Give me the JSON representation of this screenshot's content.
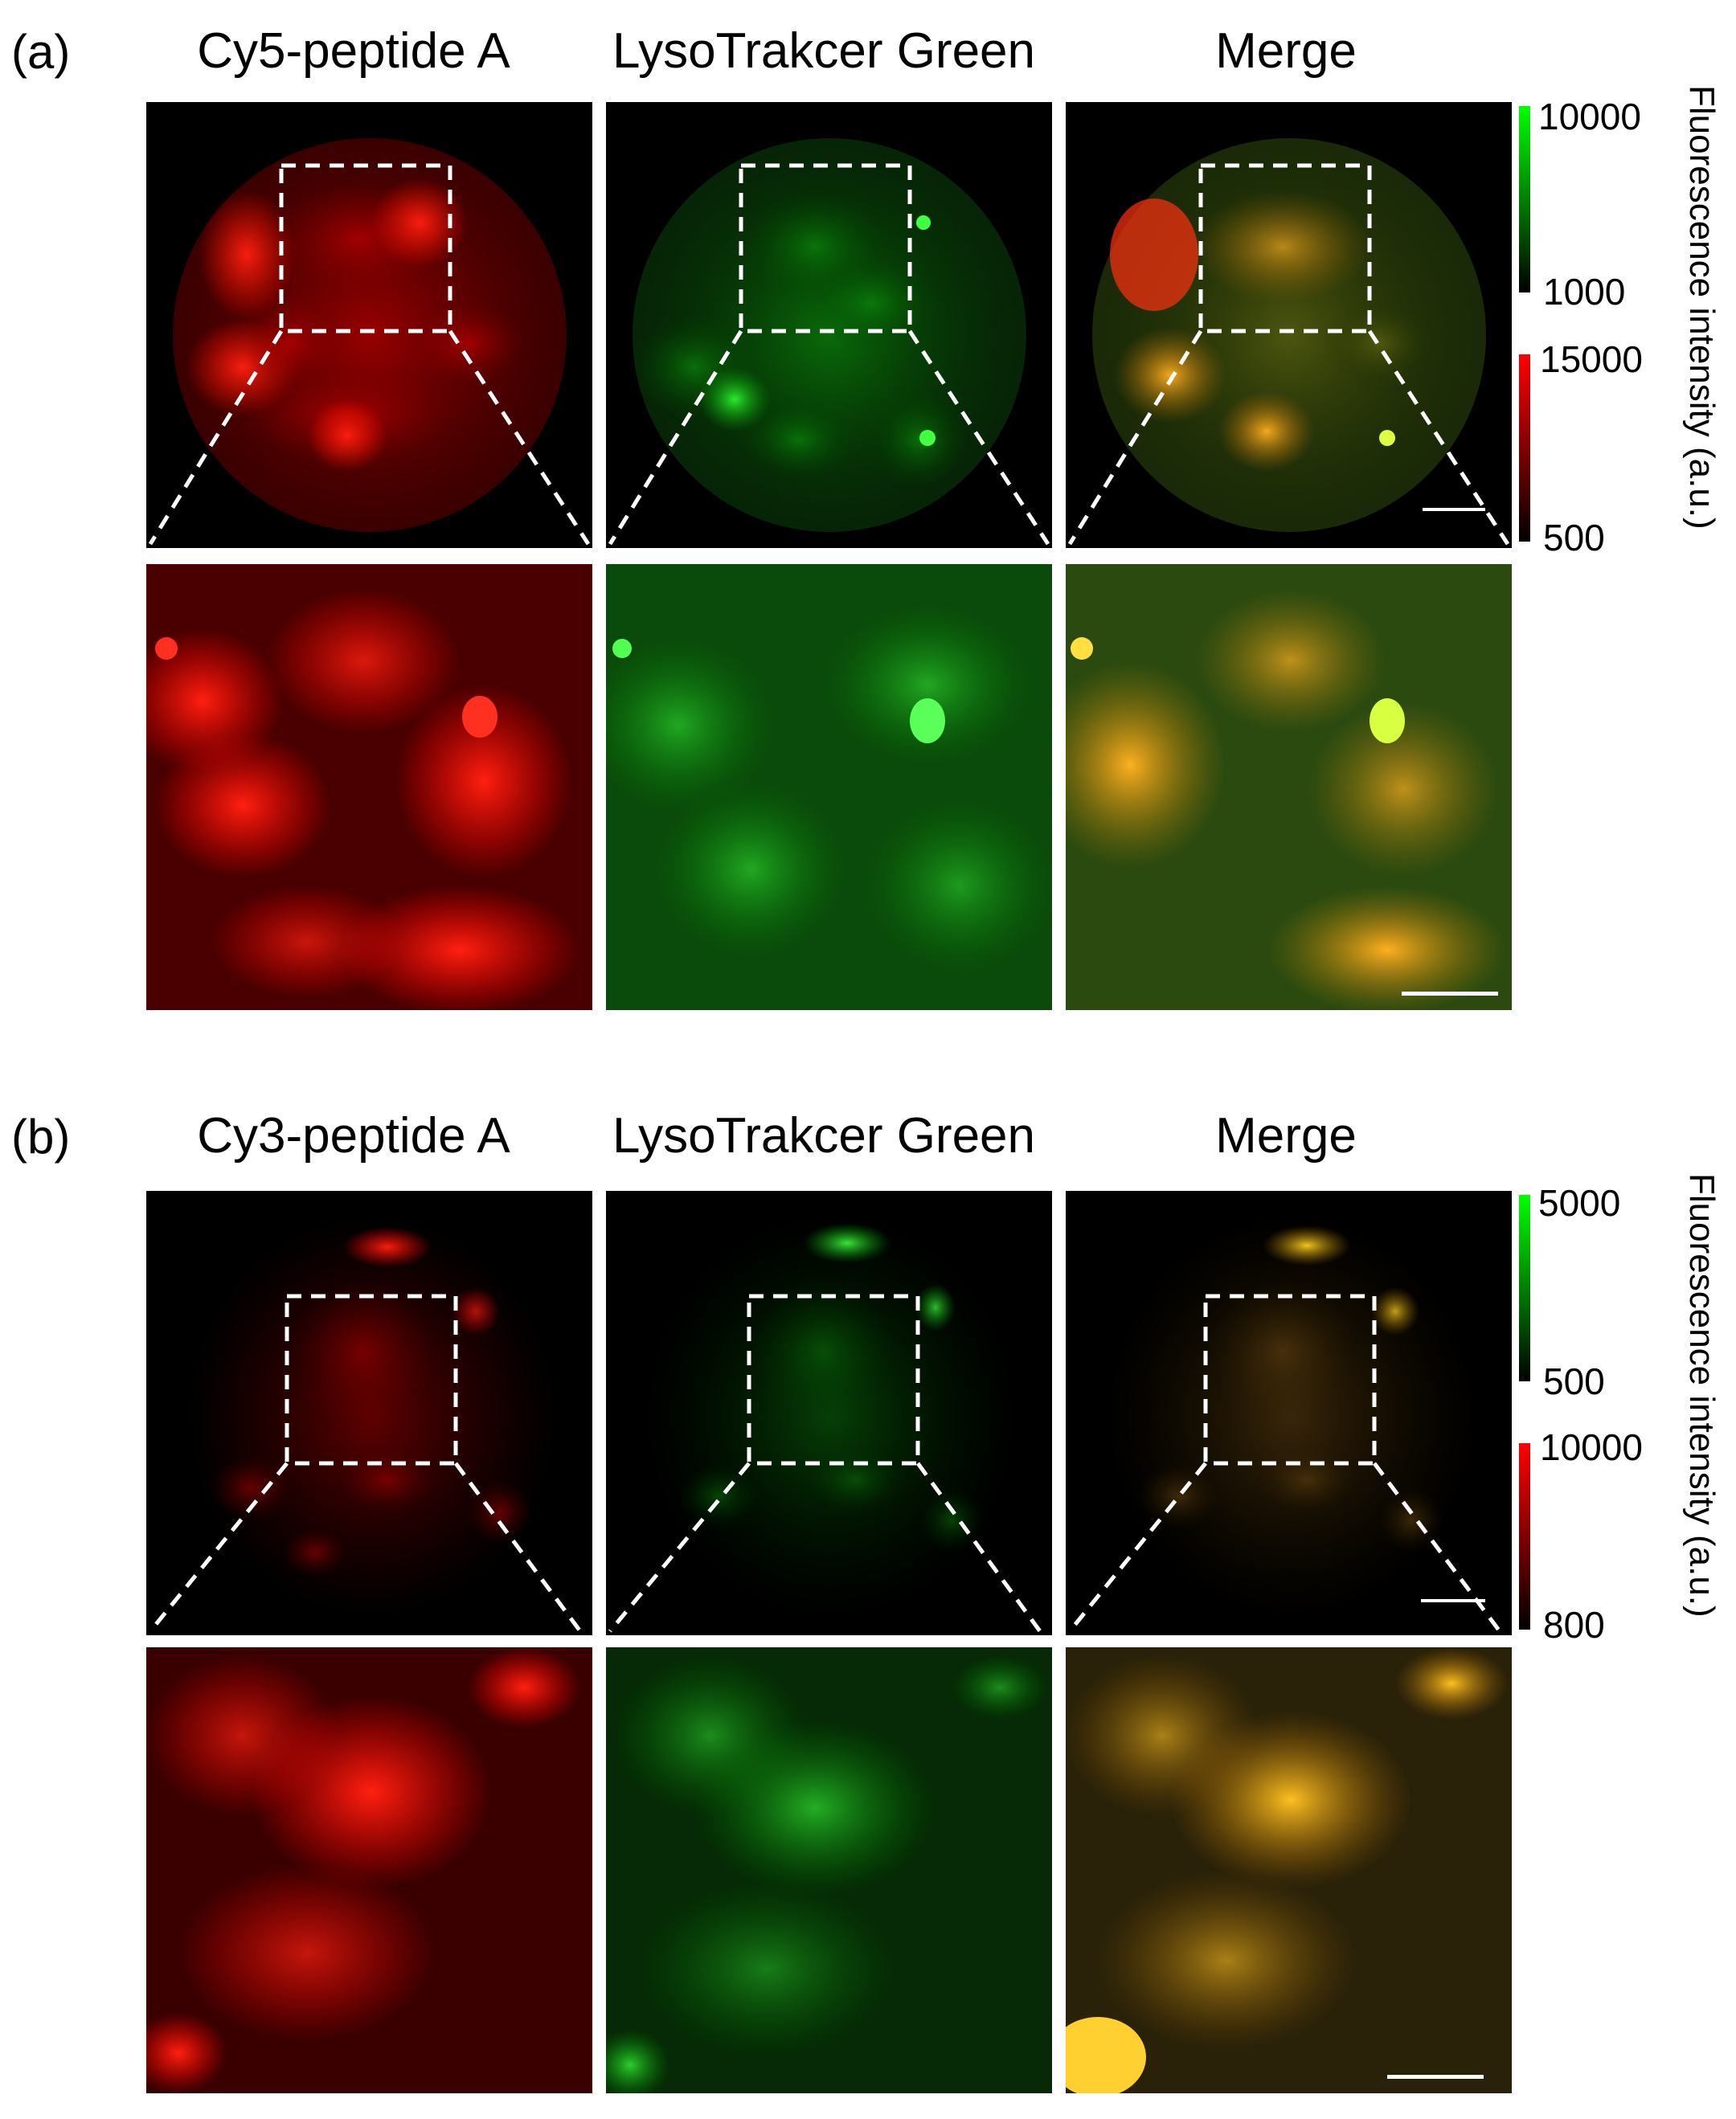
{
  "panel_a": {
    "letter": "(a)",
    "titles": [
      "Cy5-peptide A",
      "LysoTrakcer Green",
      "Merge"
    ],
    "colorbar": {
      "green": {
        "max": "10000",
        "min": "1000",
        "color": "#00ff00"
      },
      "red": {
        "max": "15000",
        "min": "500",
        "color": "#ff0000"
      },
      "axis_label": "Fluorescence intensity (a.u.)"
    }
  },
  "panel_b": {
    "letter": "(b)",
    "titles": [
      "Cy3-peptide A",
      "LysoTrakcer Green",
      "Merge"
    ],
    "colorbar": {
      "green": {
        "max": "5000",
        "min": "500",
        "color": "#00ff00"
      },
      "red": {
        "max": "10000",
        "min": "800",
        "color": "#ff0000"
      },
      "axis_label": "Fluorescence intensity (a.u.)"
    }
  },
  "colors": {
    "red_channel": "#ff1a10",
    "green_channel": "#22e022",
    "merge": "#e6a21a"
  }
}
